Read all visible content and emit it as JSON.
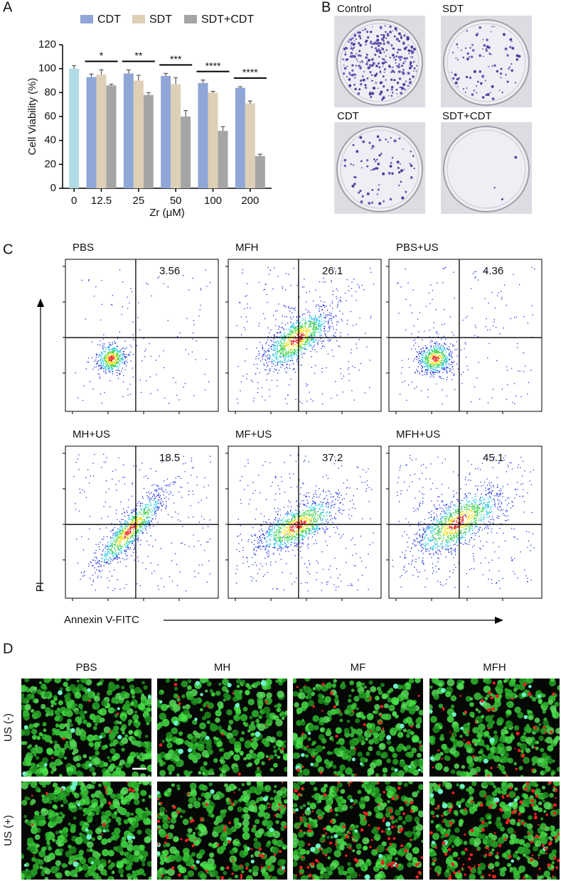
{
  "panels": [
    "A",
    "B",
    "C",
    "D"
  ],
  "chart_data": {
    "type": "bar",
    "ylabel": "Cell Viability (%)",
    "xlabel": "Zr (μM)",
    "categories": [
      "0",
      "12.5",
      "25",
      "50",
      "100",
      "200"
    ],
    "series": [
      {
        "color": "#b3dbe4",
        "values": [
          100,
          null,
          null,
          null,
          null,
          null
        ],
        "errors": [
          2.5,
          null,
          null,
          null,
          null,
          null
        ]
      },
      {
        "name": "CDT",
        "color": "#90a6d6",
        "values": [
          null,
          93,
          96,
          94,
          88,
          84
        ],
        "errors": [
          null,
          2.5,
          3,
          2,
          2.5,
          1
        ]
      },
      {
        "name": "SDT",
        "color": "#ddd0b6",
        "values": [
          null,
          95,
          90,
          87,
          80,
          71
        ],
        "errors": [
          null,
          4,
          4.5,
          5.5,
          1,
          2
        ]
      },
      {
        "name": "SDT+CDT",
        "color": "#a5a5a5",
        "values": [
          null,
          86,
          78,
          60,
          48,
          27
        ],
        "errors": [
          null,
          1,
          2,
          5,
          3.5,
          1.5
        ]
      }
    ],
    "significance": [
      null,
      "*",
      "**",
      "***",
      "****",
      "****"
    ],
    "ylim": [
      0,
      120
    ],
    "yticks": [
      0,
      20,
      40,
      60,
      80,
      100,
      120
    ],
    "legend": "top"
  },
  "colonies": {
    "labels": [
      "Control",
      "SDT",
      "CDT",
      "SDT+CDT"
    ]
  },
  "flow": {
    "plots": [
      {
        "label": "PBS",
        "value": "3.56"
      },
      {
        "label": "MFH",
        "value": "26.1"
      },
      {
        "label": "PBS+US",
        "value": "4.36"
      },
      {
        "label": "MH+US",
        "value": "18.5"
      },
      {
        "label": "MF+US",
        "value": "37.2"
      },
      {
        "label": "MFH+US",
        "value": "45.1"
      }
    ],
    "y_label": "PI",
    "x_label": "Annexin V-FITC"
  },
  "fluorescence": {
    "columns": [
      "PBS",
      "MH",
      "MF",
      "MFH"
    ],
    "rows": [
      "US (-)",
      "US (+)"
    ]
  }
}
